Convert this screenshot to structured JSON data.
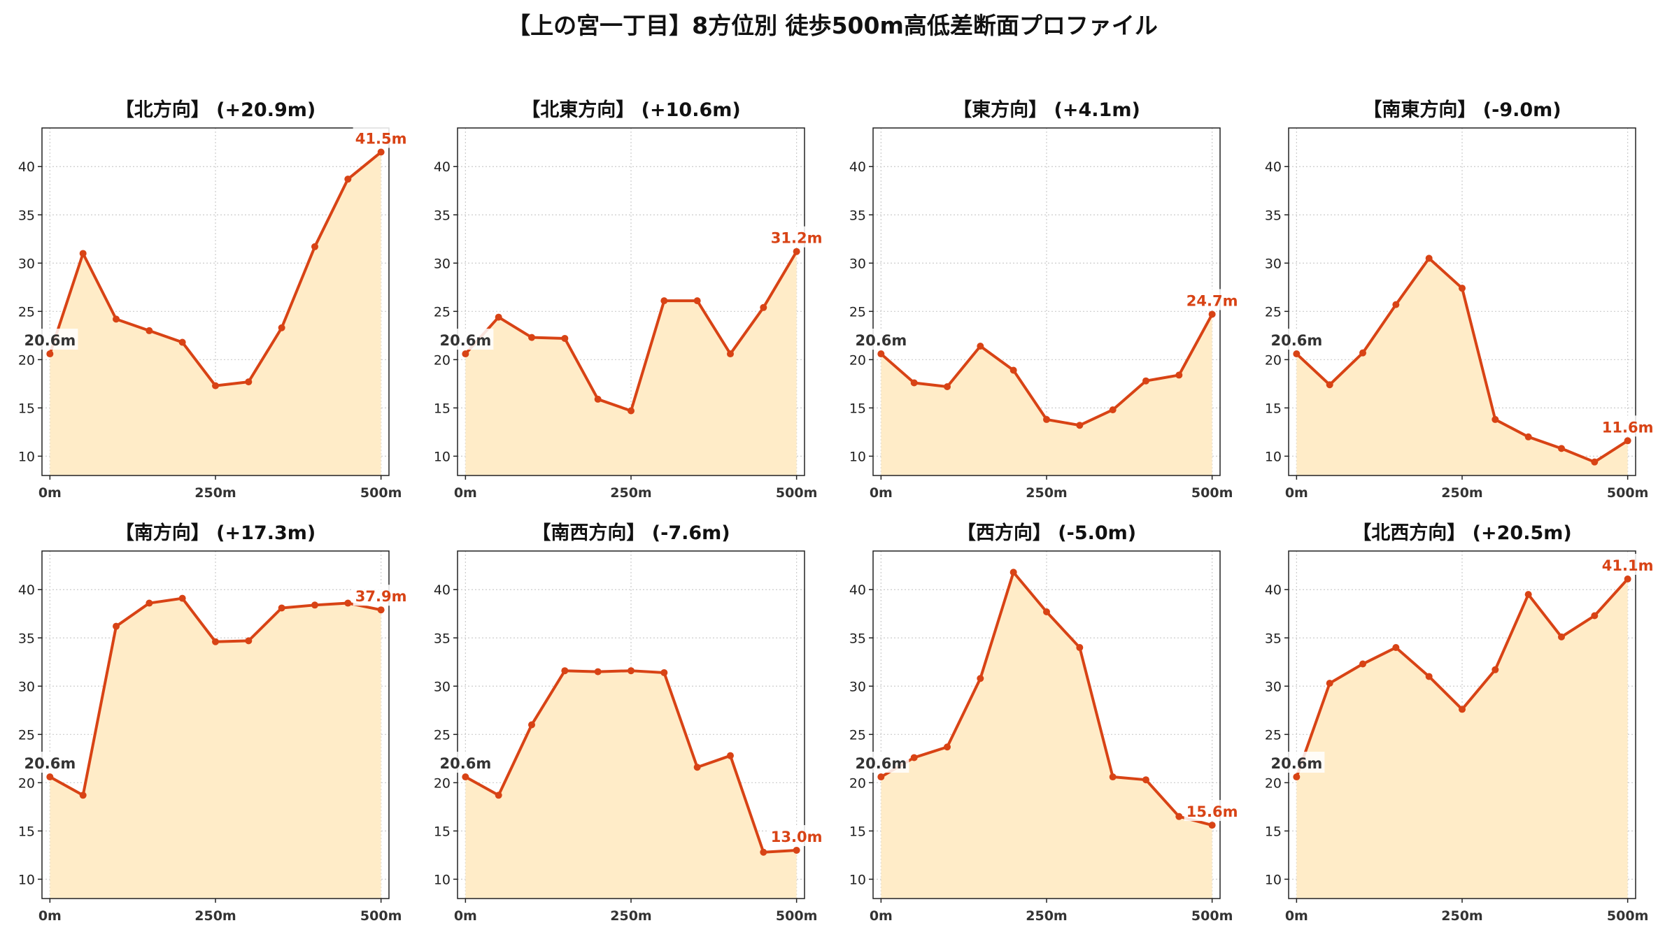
{
  "title": "【上の宮一丁目】8方位別 徒歩500m高低差断面プロファイル",
  "colors": {
    "line": "#d84315",
    "fill": "#ffecc8",
    "end_label": "#d84315",
    "start_label": "#333333",
    "grid": "#cccccc"
  },
  "chart_data": [
    {
      "type": "area",
      "title": "【北方向】 (+20.9m)",
      "x": [
        0,
        50,
        100,
        150,
        200,
        250,
        300,
        350,
        400,
        450,
        500
      ],
      "values": [
        20.6,
        31.0,
        24.2,
        23.0,
        21.8,
        17.3,
        17.7,
        23.3,
        31.7,
        38.7,
        41.5
      ],
      "start_label": "20.6m",
      "end_label": "41.5m",
      "xticks": [
        {
          "value": 0,
          "label": "0m"
        },
        {
          "value": 250,
          "label": "250m"
        },
        {
          "value": 500,
          "label": "500m"
        }
      ],
      "yticks": [
        10,
        15,
        20,
        25,
        30,
        35,
        40
      ],
      "ylim": [
        8,
        44
      ],
      "xlim": [
        -12,
        512
      ],
      "grid": true
    },
    {
      "type": "area",
      "title": "【北東方向】 (+10.6m)",
      "x": [
        0,
        50,
        100,
        150,
        200,
        250,
        300,
        350,
        400,
        450,
        500
      ],
      "values": [
        20.6,
        24.4,
        22.3,
        22.2,
        15.9,
        14.7,
        26.1,
        26.1,
        20.6,
        25.4,
        31.2
      ],
      "start_label": "20.6m",
      "end_label": "31.2m",
      "xticks": [
        {
          "value": 0,
          "label": "0m"
        },
        {
          "value": 250,
          "label": "250m"
        },
        {
          "value": 500,
          "label": "500m"
        }
      ],
      "yticks": [
        10,
        15,
        20,
        25,
        30,
        35,
        40
      ],
      "ylim": [
        8,
        44
      ],
      "xlim": [
        -12,
        512
      ],
      "grid": true
    },
    {
      "type": "area",
      "title": "【東方向】 (+4.1m)",
      "x": [
        0,
        50,
        100,
        150,
        200,
        250,
        300,
        350,
        400,
        450,
        500
      ],
      "values": [
        20.6,
        17.6,
        17.2,
        21.4,
        18.9,
        13.8,
        13.2,
        14.8,
        17.8,
        18.4,
        24.7
      ],
      "start_label": "20.6m",
      "end_label": "24.7m",
      "xticks": [
        {
          "value": 0,
          "label": "0m"
        },
        {
          "value": 250,
          "label": "250m"
        },
        {
          "value": 500,
          "label": "500m"
        }
      ],
      "yticks": [
        10,
        15,
        20,
        25,
        30,
        35,
        40
      ],
      "ylim": [
        8,
        44
      ],
      "xlim": [
        -12,
        512
      ],
      "grid": true
    },
    {
      "type": "area",
      "title": "【南東方向】 (-9.0m)",
      "x": [
        0,
        50,
        100,
        150,
        200,
        250,
        300,
        350,
        400,
        450,
        500
      ],
      "values": [
        20.6,
        17.4,
        20.7,
        25.7,
        30.5,
        27.4,
        13.8,
        12.0,
        10.8,
        9.4,
        11.6
      ],
      "start_label": "20.6m",
      "end_label": "11.6m",
      "xticks": [
        {
          "value": 0,
          "label": "0m"
        },
        {
          "value": 250,
          "label": "250m"
        },
        {
          "value": 500,
          "label": "500m"
        }
      ],
      "yticks": [
        10,
        15,
        20,
        25,
        30,
        35,
        40
      ],
      "ylim": [
        8,
        44
      ],
      "xlim": [
        -12,
        512
      ],
      "grid": true
    },
    {
      "type": "area",
      "title": "【南方向】 (+17.3m)",
      "x": [
        0,
        50,
        100,
        150,
        200,
        250,
        300,
        350,
        400,
        450,
        500
      ],
      "values": [
        20.6,
        18.7,
        36.2,
        38.6,
        39.1,
        34.6,
        34.7,
        38.1,
        38.4,
        38.6,
        37.9
      ],
      "start_label": "20.6m",
      "end_label": "37.9m",
      "xticks": [
        {
          "value": 0,
          "label": "0m"
        },
        {
          "value": 250,
          "label": "250m"
        },
        {
          "value": 500,
          "label": "500m"
        }
      ],
      "yticks": [
        10,
        15,
        20,
        25,
        30,
        35,
        40
      ],
      "ylim": [
        8,
        44
      ],
      "xlim": [
        -12,
        512
      ],
      "grid": true
    },
    {
      "type": "area",
      "title": "【南西方向】 (-7.6m)",
      "x": [
        0,
        50,
        100,
        150,
        200,
        250,
        300,
        350,
        400,
        450,
        500
      ],
      "values": [
        20.6,
        18.7,
        26.0,
        31.6,
        31.5,
        31.6,
        31.4,
        21.6,
        22.8,
        12.8,
        13.0
      ],
      "start_label": "20.6m",
      "end_label": "13.0m",
      "xticks": [
        {
          "value": 0,
          "label": "0m"
        },
        {
          "value": 250,
          "label": "250m"
        },
        {
          "value": 500,
          "label": "500m"
        }
      ],
      "yticks": [
        10,
        15,
        20,
        25,
        30,
        35,
        40
      ],
      "ylim": [
        8,
        44
      ],
      "xlim": [
        -12,
        512
      ],
      "grid": true
    },
    {
      "type": "area",
      "title": "【西方向】 (-5.0m)",
      "x": [
        0,
        50,
        100,
        150,
        200,
        250,
        300,
        350,
        400,
        450,
        500
      ],
      "values": [
        20.6,
        22.6,
        23.7,
        30.8,
        41.8,
        37.7,
        34.0,
        20.6,
        20.3,
        16.5,
        15.6
      ],
      "start_label": "20.6m",
      "end_label": "15.6m",
      "xticks": [
        {
          "value": 0,
          "label": "0m"
        },
        {
          "value": 250,
          "label": "250m"
        },
        {
          "value": 500,
          "label": "500m"
        }
      ],
      "yticks": [
        10,
        15,
        20,
        25,
        30,
        35,
        40
      ],
      "ylim": [
        8,
        44
      ],
      "xlim": [
        -12,
        512
      ],
      "grid": true
    },
    {
      "type": "area",
      "title": "【北西方向】 (+20.5m)",
      "x": [
        0,
        50,
        100,
        150,
        200,
        250,
        300,
        350,
        400,
        450,
        500
      ],
      "values": [
        20.6,
        30.3,
        32.3,
        34.0,
        31.0,
        27.6,
        31.7,
        39.5,
        35.1,
        37.3,
        41.1
      ],
      "start_label": "20.6m",
      "end_label": "41.1m",
      "xticks": [
        {
          "value": 0,
          "label": "0m"
        },
        {
          "value": 250,
          "label": "250m"
        },
        {
          "value": 500,
          "label": "500m"
        }
      ],
      "yticks": [
        10,
        15,
        20,
        25,
        30,
        35,
        40
      ],
      "ylim": [
        8,
        44
      ],
      "xlim": [
        -12,
        512
      ],
      "grid": true
    }
  ]
}
